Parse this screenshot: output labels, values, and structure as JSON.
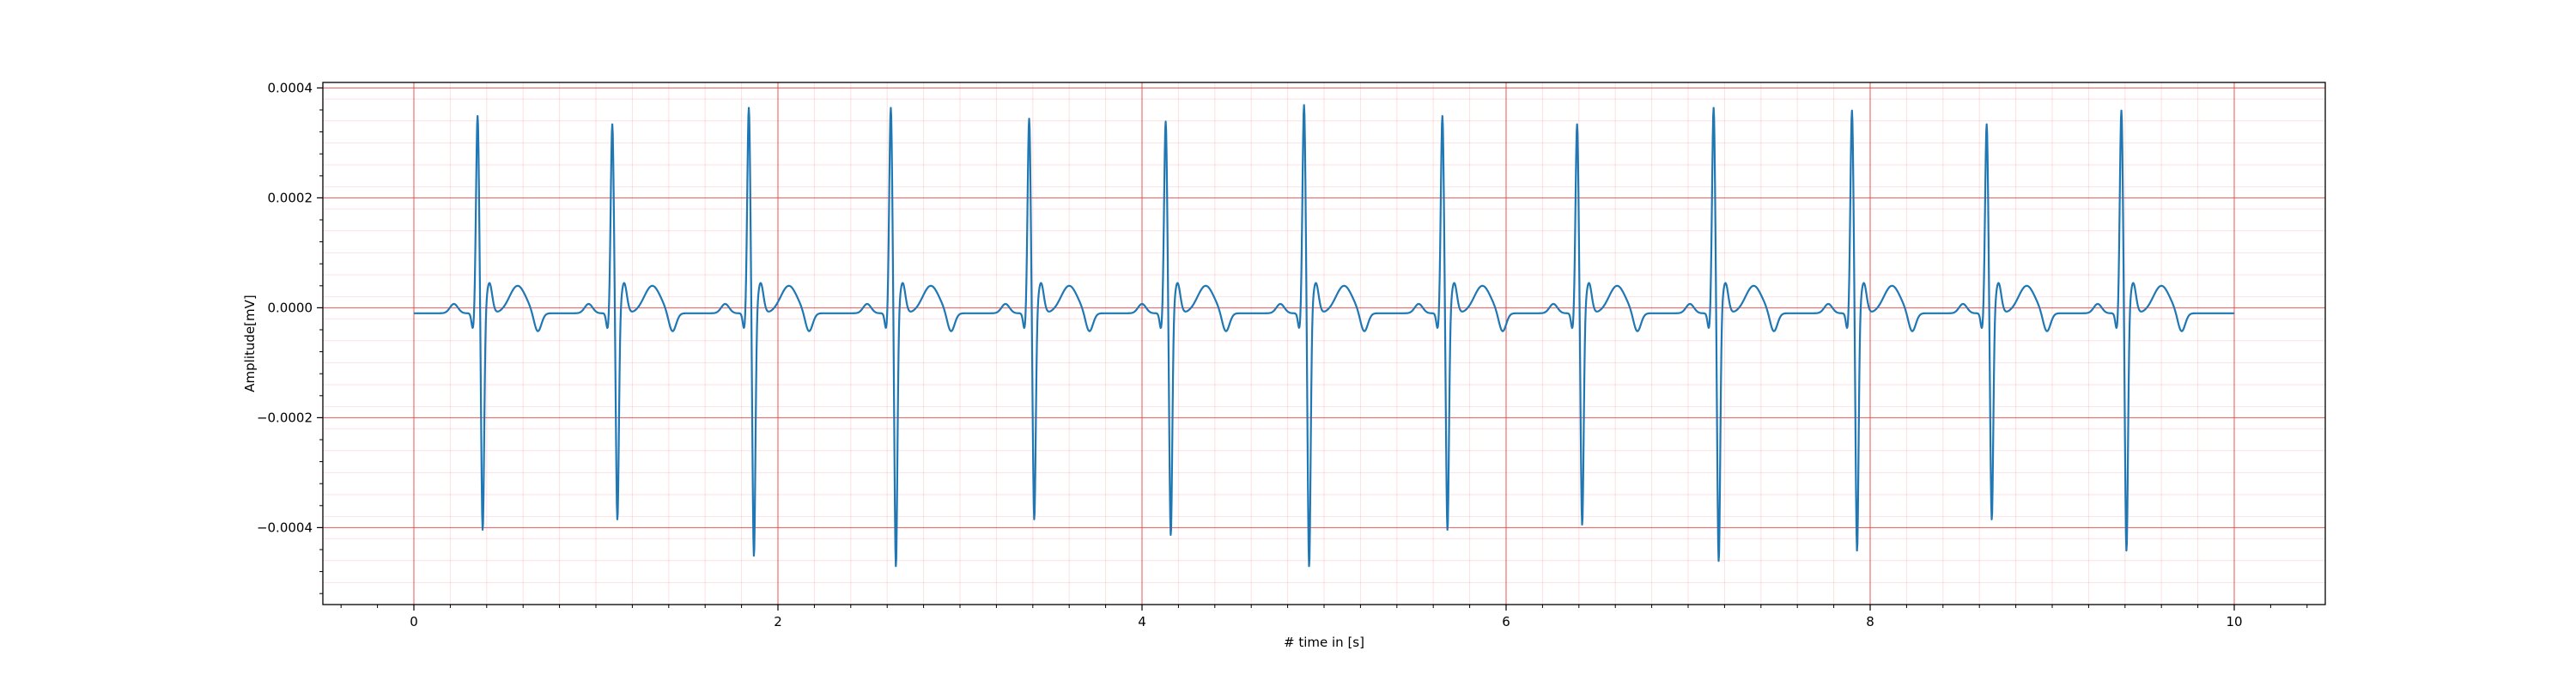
{
  "chart_data": {
    "type": "line",
    "title": "",
    "xlabel": "# time in [s]",
    "ylabel": "Amplitude[mV]",
    "xlim": [
      -0.5,
      10.5
    ],
    "ylim": [
      -0.00054,
      0.00041
    ],
    "x_ticks": [
      0,
      2,
      4,
      6,
      8,
      10
    ],
    "x_tick_labels": [
      "0",
      "2",
      "4",
      "6",
      "8",
      "10"
    ],
    "y_ticks": [
      0.0004,
      0.0002,
      0.0,
      -0.0002,
      -0.0004
    ],
    "y_tick_labels": [
      "0.0004",
      "0.0002",
      "0.0000",
      "−0.0002",
      "−0.0004"
    ],
    "grid": {
      "major": true,
      "minor": true,
      "color": "#e8393a"
    },
    "line_color": "#1f77b4",
    "series": [
      {
        "beats": [
          {
            "r_time": 0.35,
            "r_peak": 0.00035,
            "s_trough": -0.00042
          },
          {
            "r_time": 1.09,
            "r_peak": 0.000335,
            "s_trough": -0.0004
          },
          {
            "r_time": 1.84,
            "r_peak": 0.000365,
            "s_trough": -0.00047
          },
          {
            "r_time": 2.62,
            "r_peak": 0.000365,
            "s_trough": -0.00049
          },
          {
            "r_time": 3.38,
            "r_peak": 0.000345,
            "s_trough": -0.0004
          },
          {
            "r_time": 4.13,
            "r_peak": 0.00034,
            "s_trough": -0.00043
          },
          {
            "r_time": 4.89,
            "r_peak": 0.00037,
            "s_trough": -0.00049
          },
          {
            "r_time": 5.65,
            "r_peak": 0.00035,
            "s_trough": -0.00042
          },
          {
            "r_time": 6.39,
            "r_peak": 0.000335,
            "s_trough": -0.00041
          },
          {
            "r_time": 7.14,
            "r_peak": 0.000365,
            "s_trough": -0.00048
          },
          {
            "r_time": 7.9,
            "r_peak": 0.00036,
            "s_trough": -0.00046
          },
          {
            "r_time": 8.64,
            "r_peak": 0.000335,
            "s_trough": -0.0004
          },
          {
            "r_time": 9.38,
            "r_peak": 0.00036,
            "s_trough": -0.00046
          }
        ],
        "t_start": 0.0,
        "t_end": 10.0,
        "baseline": -1e-05
      }
    ]
  }
}
